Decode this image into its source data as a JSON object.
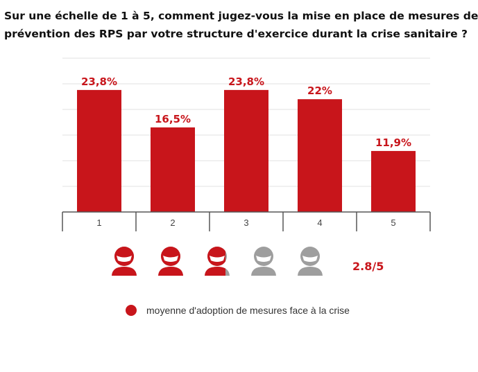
{
  "title_lines": [
    "Sur une échelle de 1 à 5, comment jugez-vous la mise en place de mesures de",
    "prévention des RPS par votre structure d'exercice durant la crise sanitaire ?"
  ],
  "colors": {
    "bar": "#c8151b",
    "icon_active": "#c8151b",
    "icon_inactive": "#9e9e9e",
    "gridline": "#e0e0e0",
    "axis": "#555555"
  },
  "chart_data": {
    "type": "bar",
    "title": "Sur une échelle de 1 à 5, comment jugez-vous la mise en place de mesures de prévention des RPS par votre structure d'exercice durant la crise sanitaire ?",
    "categories": [
      "1",
      "2",
      "3",
      "4",
      "5"
    ],
    "values": [
      23.8,
      16.5,
      23.8,
      22,
      11.9
    ],
    "value_labels": [
      "23,8%",
      "16,5%",
      "23,8%",
      "22%",
      "11,9%"
    ],
    "ylim": [
      0,
      30
    ],
    "grid": true,
    "xlabel": "",
    "ylabel": ""
  },
  "rating": {
    "value": 2.8,
    "max": 5,
    "label": "2.8/5",
    "icon": "person-icon"
  },
  "legend": {
    "label": "moyenne d'adoption de mesures face à la crise",
    "icon": "circle-dot-icon"
  }
}
